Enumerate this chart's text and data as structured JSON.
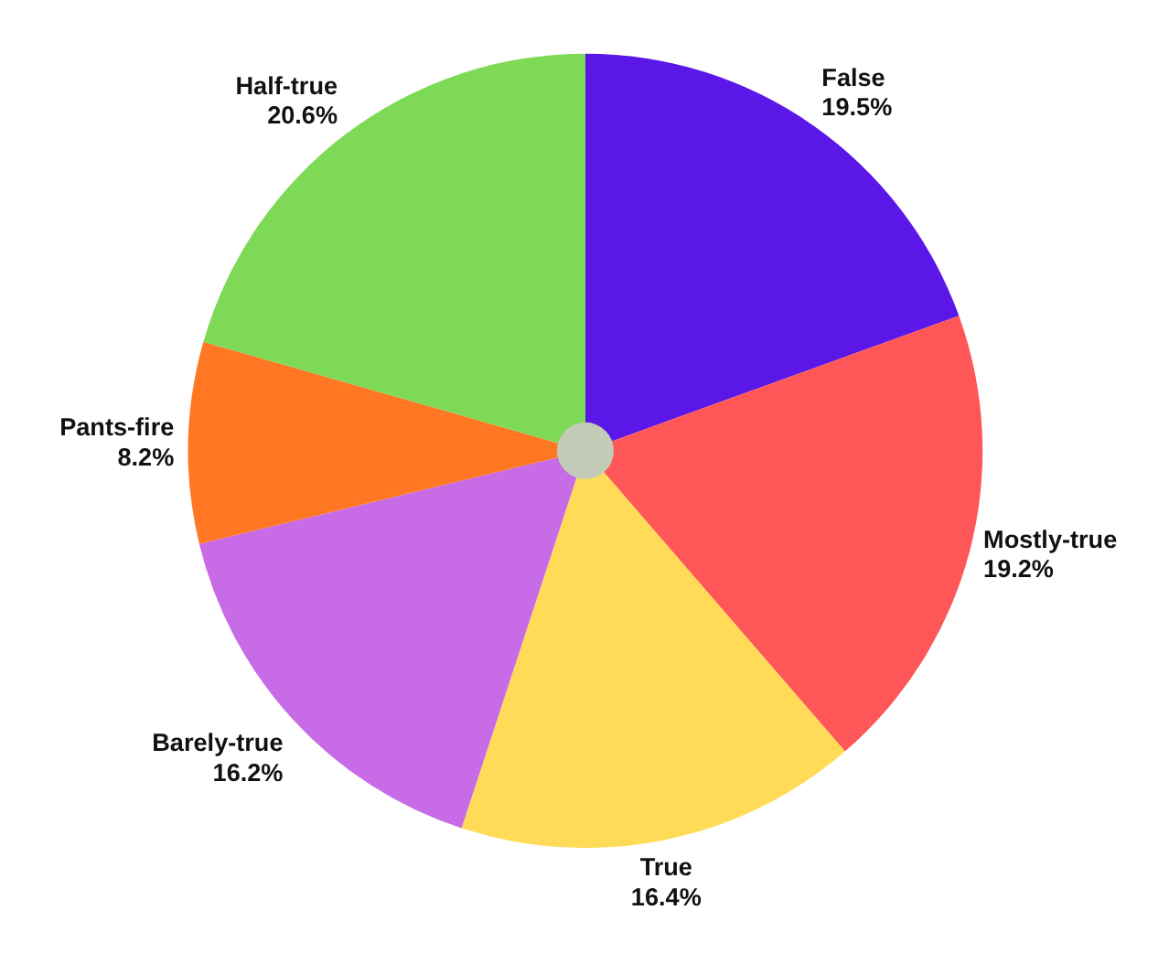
{
  "chart_data": {
    "type": "pie",
    "categories": [
      "False",
      "Mostly-true",
      "True",
      "Barely-true",
      "Pants-fire",
      "Half-true"
    ],
    "values": [
      19.5,
      19.2,
      16.4,
      16.2,
      8.2,
      20.6
    ],
    "colors": [
      "#5b17e8",
      "#ff5757",
      "#ffdb58",
      "#c86be6",
      "#ff7722",
      "#7ed957"
    ],
    "value_labels": [
      "19.5%",
      "19.2%",
      "16.4%",
      "16.2%",
      "8.2%",
      "20.6%"
    ]
  }
}
